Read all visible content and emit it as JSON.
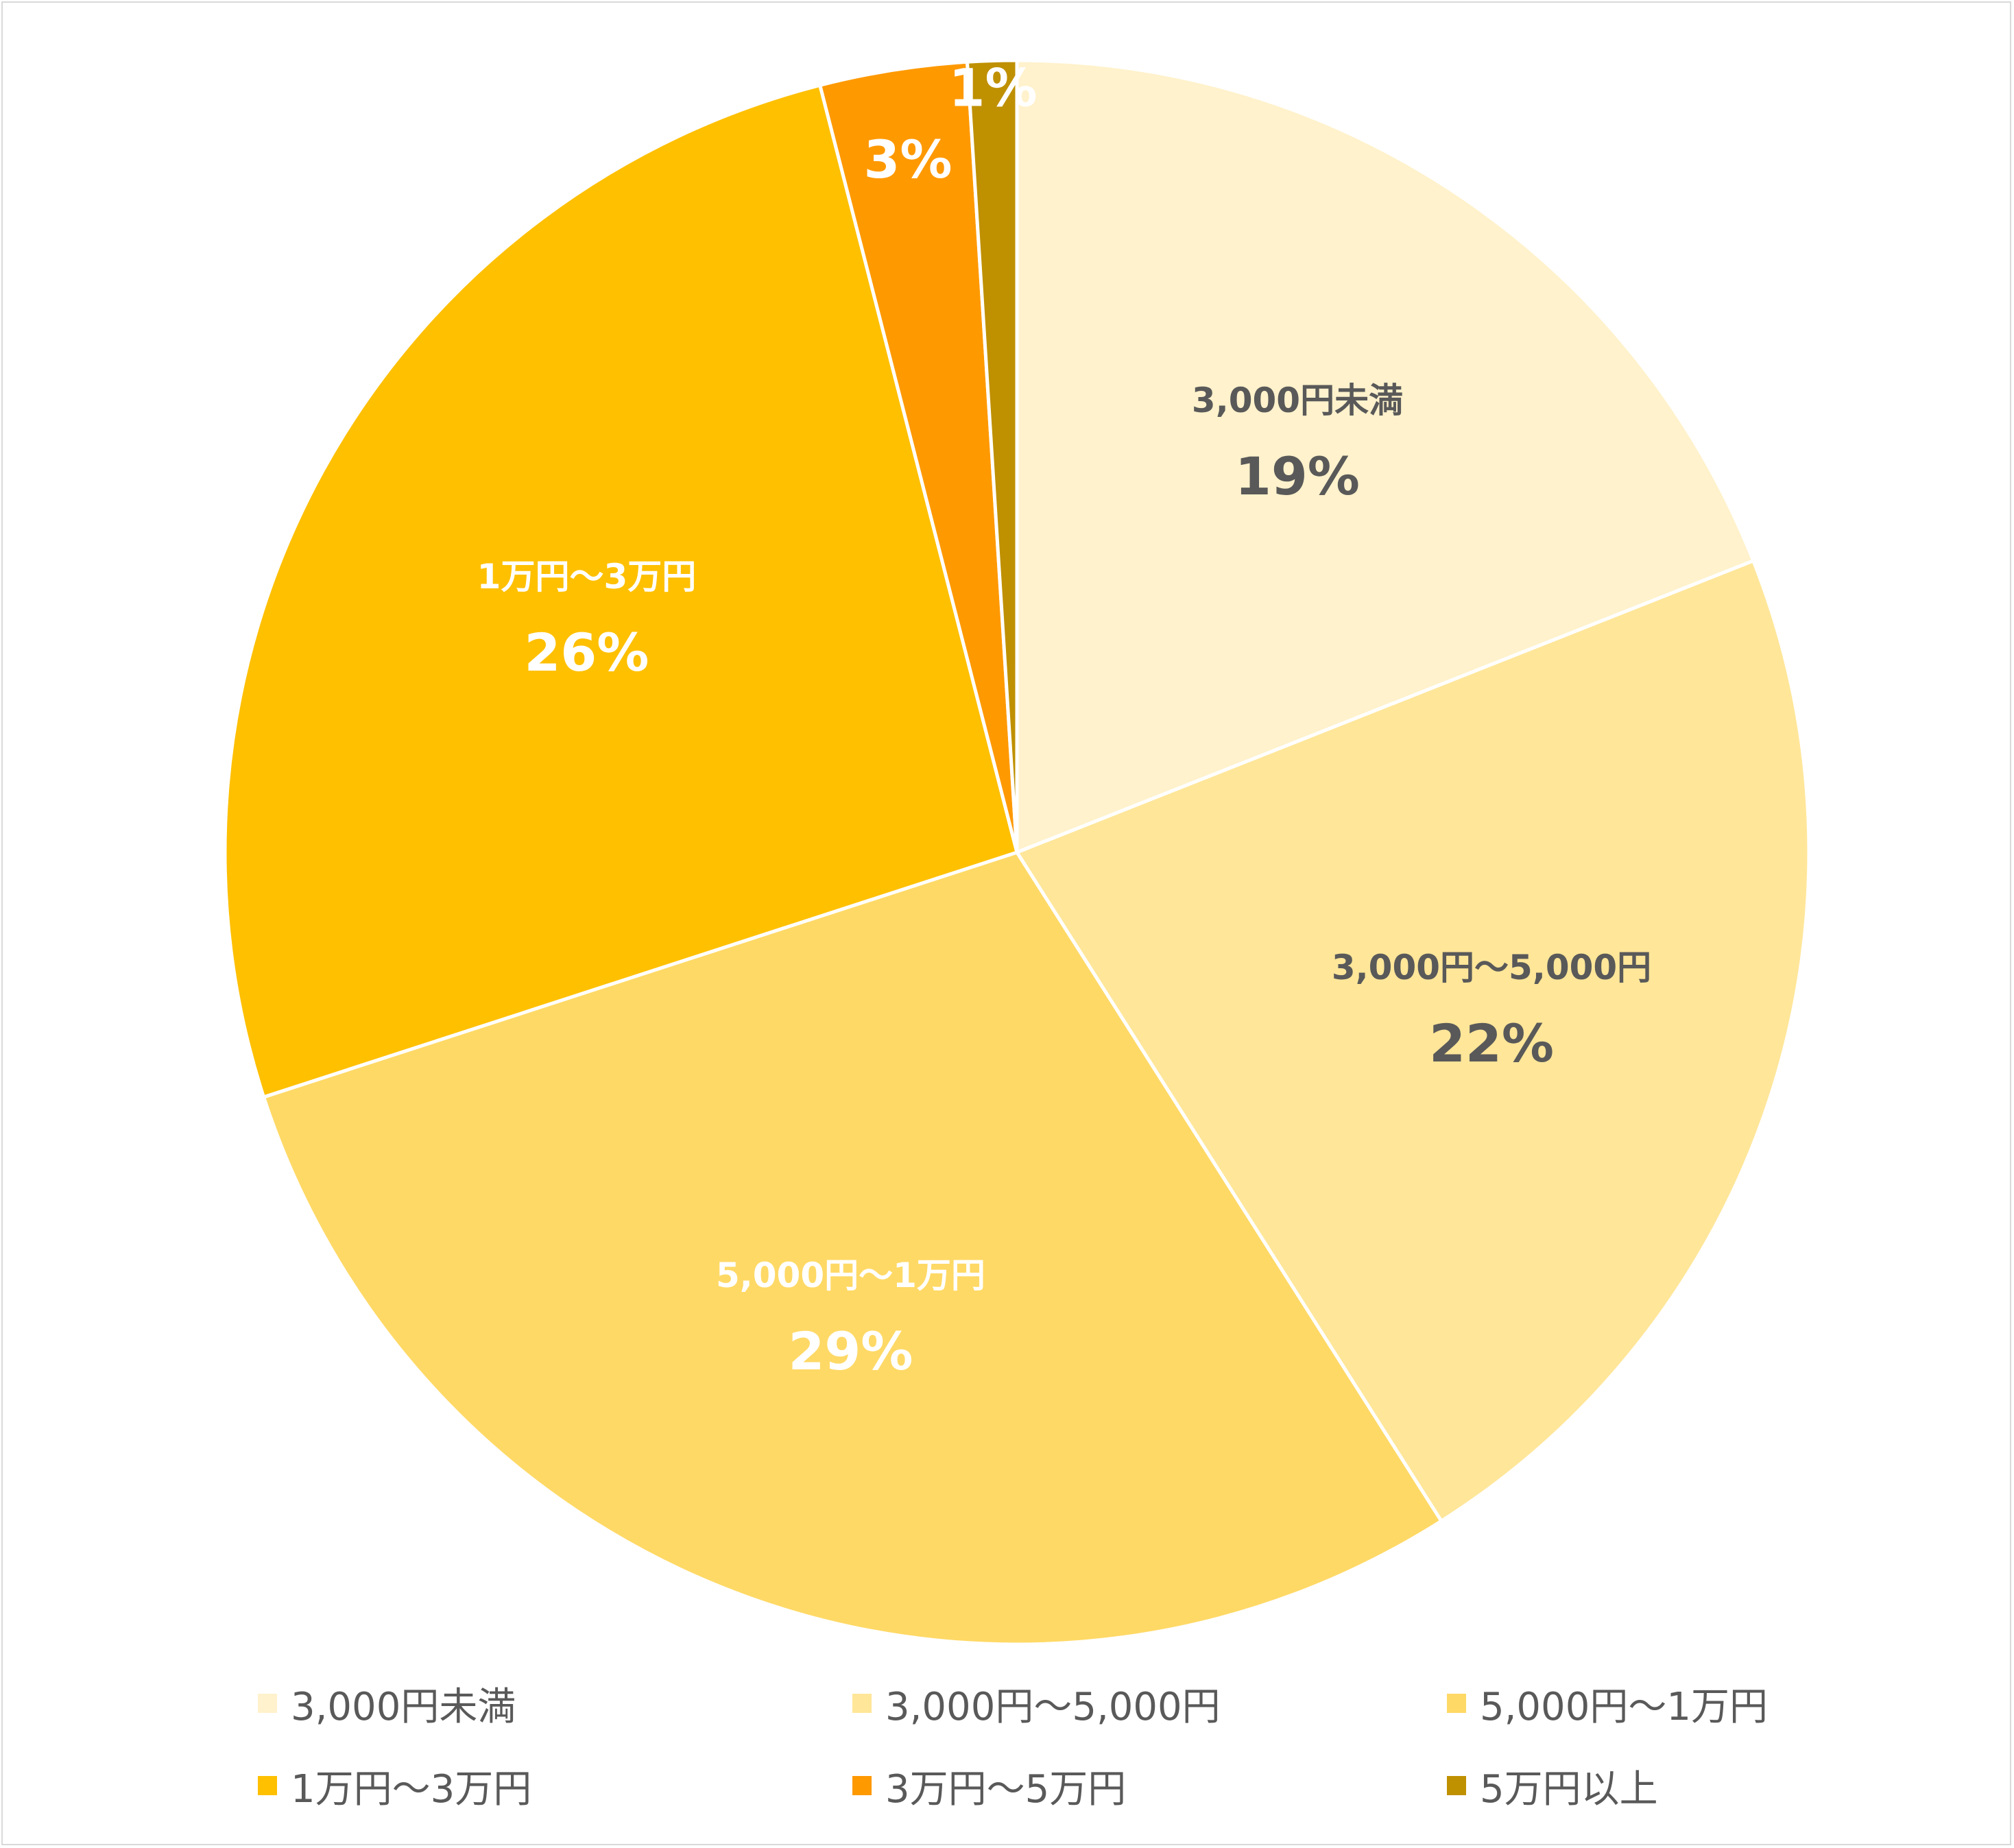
{
  "chart_data": {
    "type": "pie",
    "title": "",
    "slices": [
      {
        "name": "3,000円未満",
        "value": 19,
        "label": "19%",
        "color": "#FFF2CC",
        "label_color": "#595959"
      },
      {
        "name": "3,000円〜5,000円",
        "value": 22,
        "label": "22%",
        "color": "#FFE699",
        "label_color": "#595959"
      },
      {
        "name": "5,000円〜1万円",
        "value": 29,
        "label": "29%",
        "color": "#FFD966",
        "label_color": "#FFFFFF"
      },
      {
        "name": "1万円〜3万円",
        "value": 26,
        "label": "26%",
        "color": "#FFC000",
        "label_color": "#FFFFFF"
      },
      {
        "name": "3万円〜5万円",
        "value": 3,
        "label": "3%",
        "color": "#FF9900",
        "label_color": "#FFFFFF"
      },
      {
        "name": "5万円以上",
        "value": 1,
        "label": "1%",
        "color": "#BF9000",
        "label_color": "#FFFFFF"
      }
    ],
    "legend_position": "bottom",
    "start_angle": "12 o'clock",
    "direction": "clockwise"
  }
}
